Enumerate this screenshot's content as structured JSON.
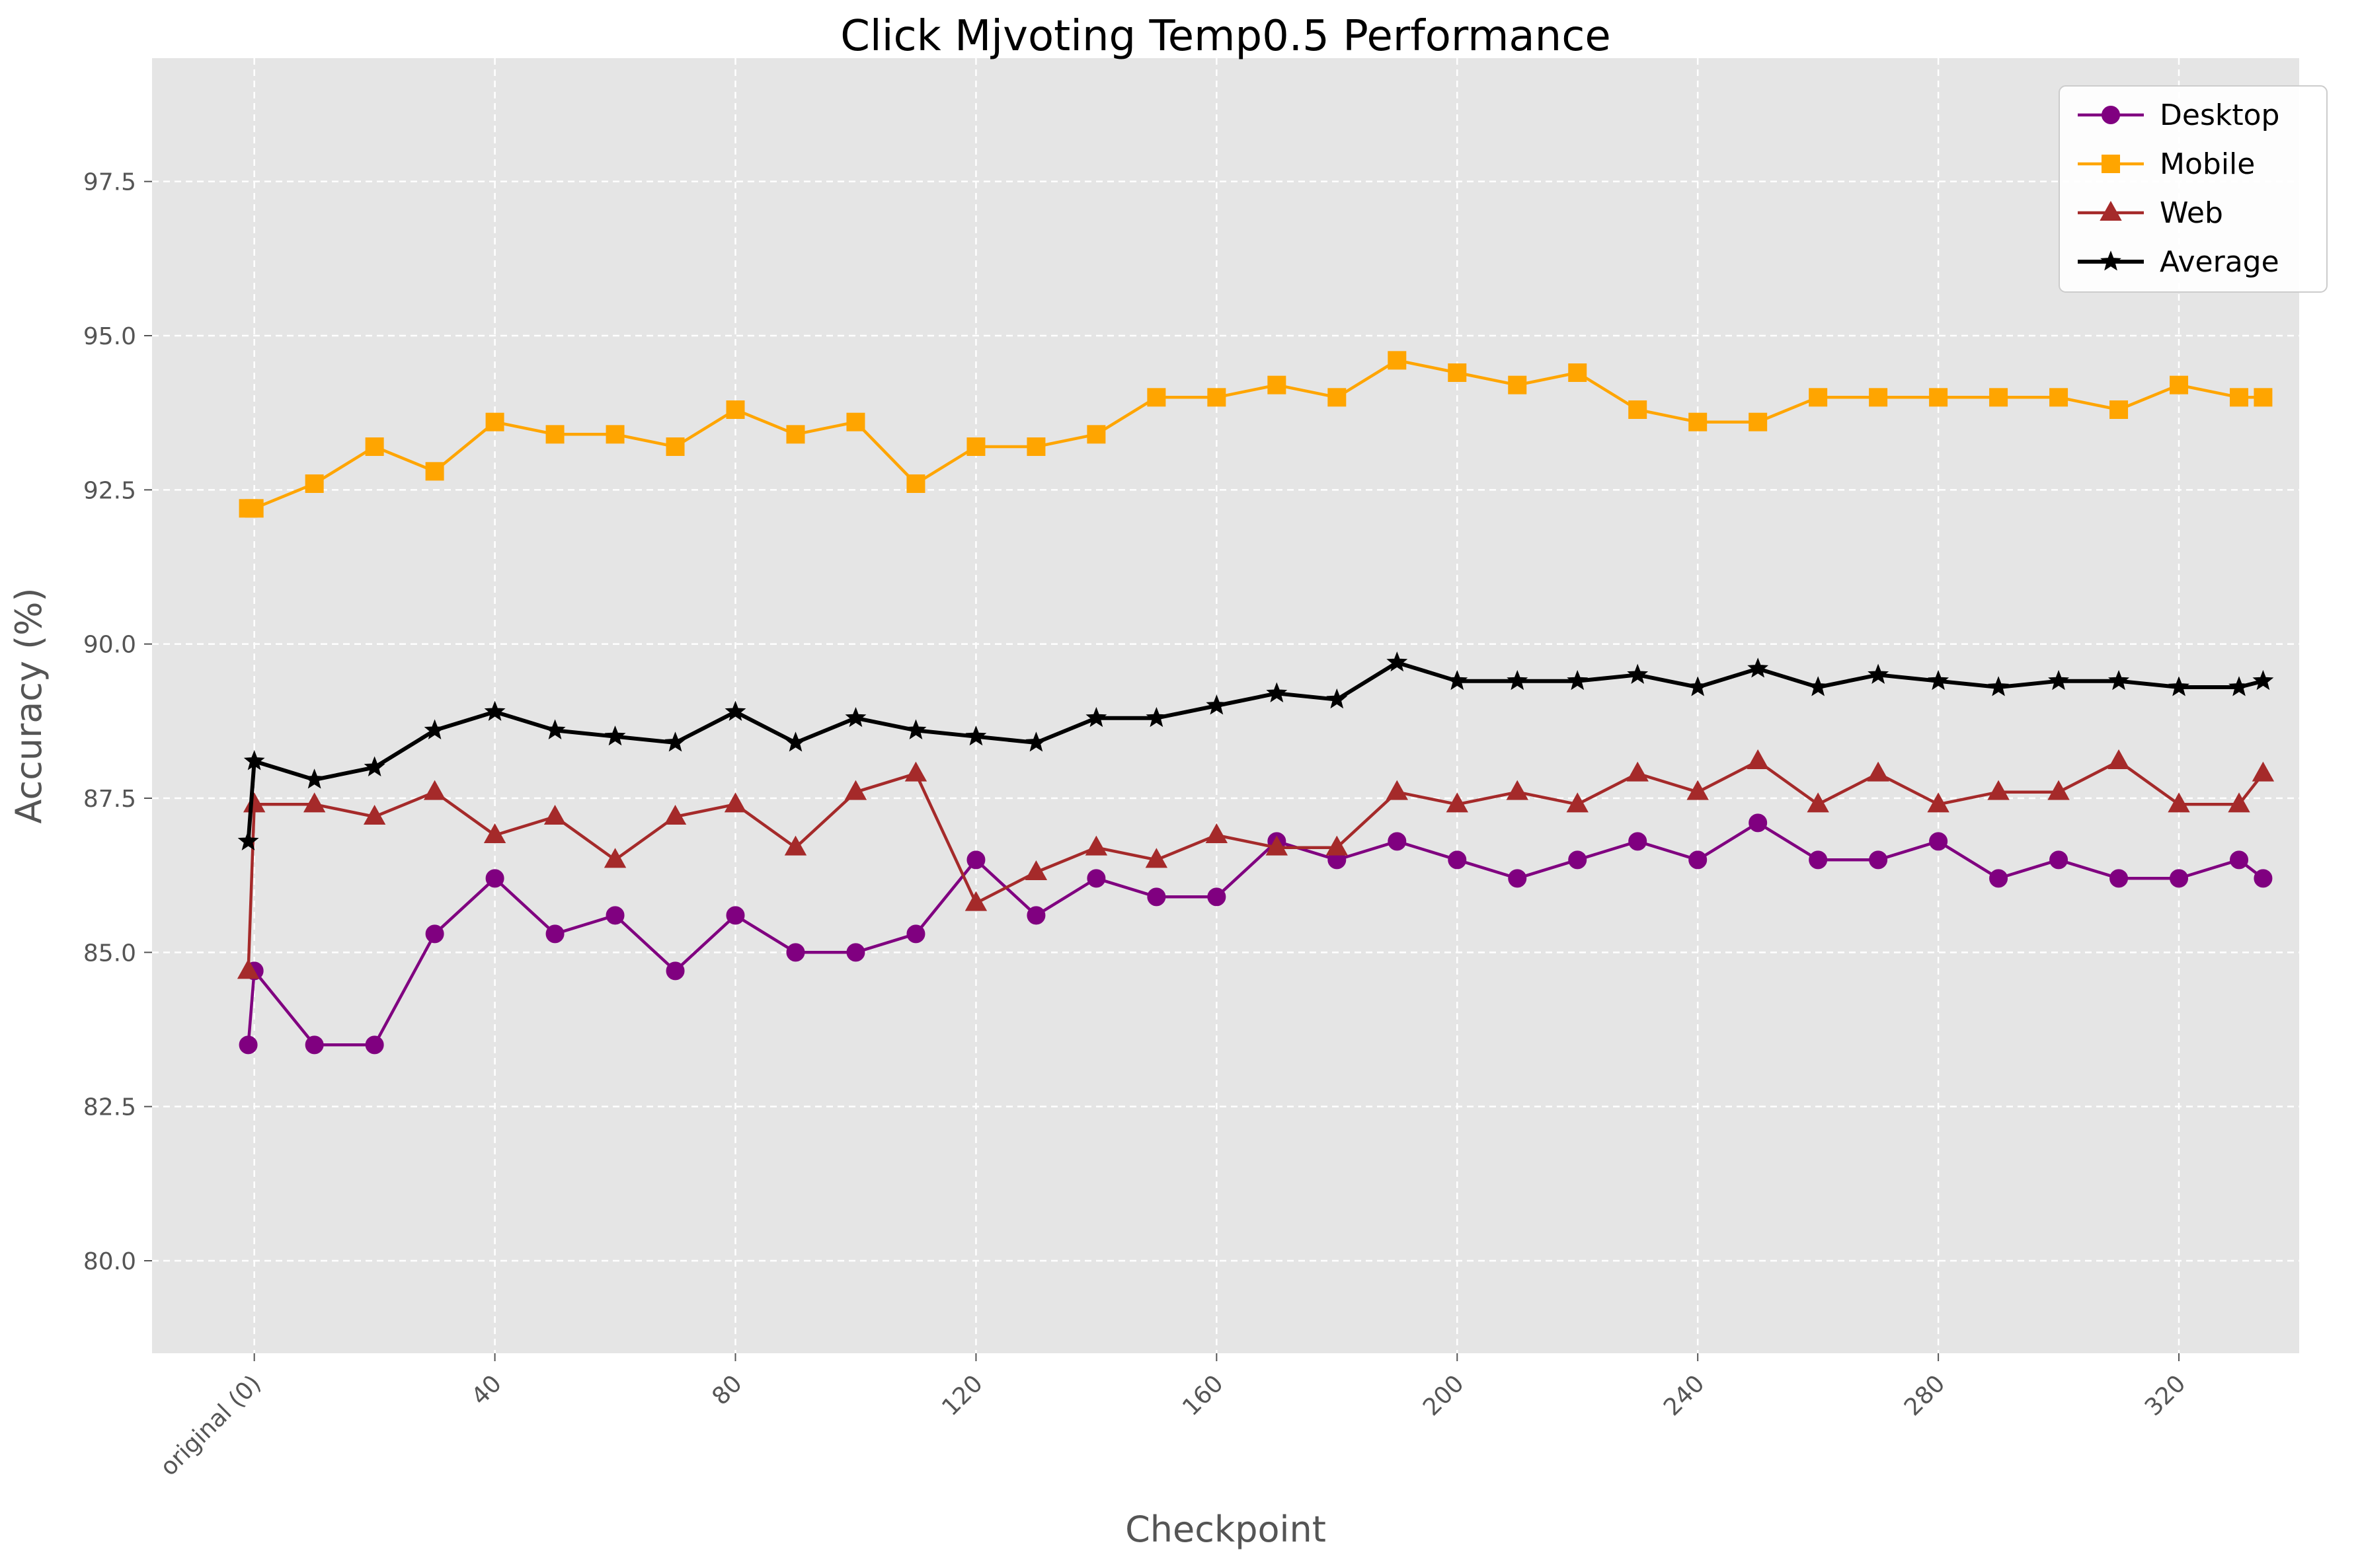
{
  "chart_data": {
    "type": "line",
    "title": "Click Mjvoting Temp0.5 Performance",
    "xlabel": "Checkpoint",
    "ylabel": "Accuracy (%)",
    "xlim": [
      -17,
      340
    ],
    "ylim": [
      78.5,
      99.5
    ],
    "yticks": [
      80.0,
      82.5,
      85.0,
      87.5,
      90.0,
      92.5,
      95.0,
      97.5
    ],
    "ytick_labels": [
      "80.0",
      "82.5",
      "85.0",
      "87.5",
      "90.0",
      "92.5",
      "95.0",
      "97.5"
    ],
    "xticks": [
      0,
      40,
      80,
      120,
      160,
      200,
      240,
      280,
      320
    ],
    "xtick_labels": [
      "original (0)",
      "40",
      "80",
      "120",
      "160",
      "200",
      "240",
      "280",
      "320"
    ],
    "grid": true,
    "legend_position": "top-right",
    "x": [
      -1,
      0,
      10,
      20,
      30,
      40,
      50,
      60,
      70,
      80,
      90,
      100,
      110,
      120,
      130,
      140,
      150,
      160,
      170,
      180,
      190,
      200,
      210,
      220,
      230,
      240,
      250,
      260,
      270,
      280,
      290,
      300,
      310,
      320,
      330,
      334
    ],
    "series": [
      {
        "name": "Desktop",
        "color": "#800080",
        "marker": "circle",
        "values": [
          83.5,
          84.7,
          83.5,
          83.5,
          85.3,
          86.2,
          85.3,
          85.6,
          84.7,
          85.6,
          85.0,
          85.0,
          85.3,
          86.5,
          85.6,
          86.2,
          85.9,
          85.9,
          86.8,
          86.5,
          86.8,
          86.5,
          86.2,
          86.5,
          86.8,
          86.5,
          87.1,
          86.5,
          86.5,
          86.8,
          86.2,
          86.5,
          86.2,
          86.2,
          86.5,
          86.2
        ]
      },
      {
        "name": "Mobile",
        "color": "#FFA500",
        "marker": "square",
        "values": [
          92.2,
          92.2,
          92.6,
          93.2,
          92.8,
          93.6,
          93.4,
          93.4,
          93.2,
          93.8,
          93.4,
          93.6,
          92.6,
          93.2,
          93.2,
          93.4,
          94.0,
          94.0,
          94.2,
          94.0,
          94.6,
          94.4,
          94.2,
          94.4,
          93.8,
          93.6,
          93.6,
          94.0,
          94.0,
          94.0,
          94.0,
          94.0,
          93.8,
          94.2,
          94.0,
          94.0
        ]
      },
      {
        "name": "Web",
        "color": "#A52A2A",
        "marker": "triangle",
        "values": [
          84.7,
          87.4,
          87.4,
          87.2,
          87.6,
          86.9,
          87.2,
          86.5,
          87.2,
          87.4,
          86.7,
          87.6,
          87.9,
          85.8,
          86.3,
          86.7,
          86.5,
          86.9,
          86.7,
          86.7,
          87.6,
          87.4,
          87.6,
          87.4,
          87.9,
          87.6,
          88.1,
          87.4,
          87.9,
          87.4,
          87.6,
          87.6,
          88.1,
          87.4,
          87.4,
          87.9
        ]
      },
      {
        "name": "Average",
        "color": "#000000",
        "marker": "star",
        "values": [
          86.8,
          88.1,
          87.8,
          88.0,
          88.6,
          88.9,
          88.6,
          88.5,
          88.4,
          88.9,
          88.4,
          88.8,
          88.6,
          88.5,
          88.4,
          88.8,
          88.8,
          89.0,
          89.2,
          89.1,
          89.7,
          89.4,
          89.4,
          89.4,
          89.5,
          89.3,
          89.6,
          89.3,
          89.5,
          89.4,
          89.3,
          89.4,
          89.4,
          89.3,
          89.3,
          89.4
        ]
      }
    ]
  }
}
